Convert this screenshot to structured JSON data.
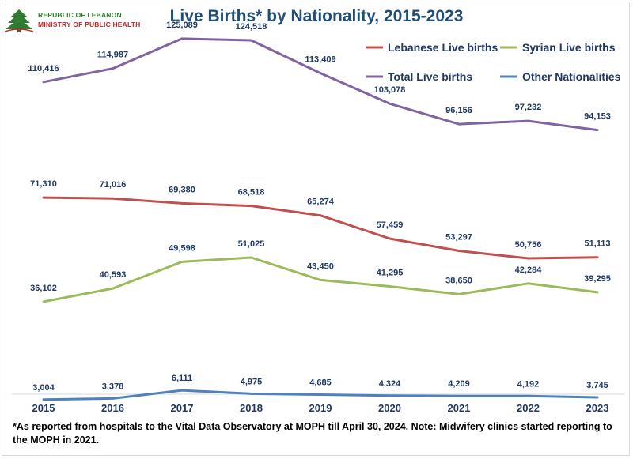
{
  "header": {
    "logo_line1": "REPUBLIC OF LEBANON",
    "logo_line2": "MINISTRY OF PUBLIC HEALTH"
  },
  "footnote": "*As reported from hospitals to the Vital Data Observatory at MOPH till April 30, 2024. Note: Midwifery clinics started reporting to the MOPH in 2021.",
  "colors": {
    "title": "#1f4e79",
    "labels": "#1f3864",
    "lebanese": "#c0504d",
    "syrian": "#9bbb59",
    "total": "#8064a2",
    "other": "#4f81bd"
  },
  "chart_data": {
    "type": "line",
    "title": "Live Births* by Nationality, 2015-2023",
    "x": [
      "2015",
      "2016",
      "2017",
      "2018",
      "2019",
      "2020",
      "2021",
      "2022",
      "2023"
    ],
    "ylim": [
      0,
      132000
    ],
    "grid": false,
    "legend_position": "top-right",
    "series": [
      {
        "key": "lebanese",
        "name": "Lebanese Live births",
        "color": "#c0504d",
        "values": [
          71310,
          71016,
          69380,
          68518,
          65274,
          57459,
          53297,
          50756,
          51113
        ],
        "labels": [
          "71,310",
          "71,016",
          "69,380",
          "68,518",
          "65,274",
          "57,459",
          "53,297",
          "50,756",
          "51,113"
        ]
      },
      {
        "key": "syrian",
        "name": "Syrian Live births",
        "color": "#9bbb59",
        "values": [
          36102,
          40593,
          49598,
          51025,
          43450,
          41295,
          38650,
          42284,
          39295
        ],
        "labels": [
          "36,102",
          "40,593",
          "49,598",
          "51,025",
          "43,450",
          "41,295",
          "38,650",
          "42,284",
          "39,295"
        ]
      },
      {
        "key": "total",
        "name": "Total Live births",
        "color": "#8064a2",
        "values": [
          110416,
          114987,
          125089,
          124518,
          113409,
          103078,
          96156,
          97232,
          94153
        ],
        "labels": [
          "110,416",
          "114,987",
          "125,089",
          "124,518",
          "113,409",
          "103,078",
          "96,156",
          "97,232",
          "94,153"
        ]
      },
      {
        "key": "other",
        "name": "Other Nationalities",
        "color": "#4f81bd",
        "values": [
          3004,
          3378,
          6111,
          4975,
          4685,
          4324,
          4209,
          4192,
          3745
        ],
        "labels": [
          "3,004",
          "3,378",
          "6,111",
          "4,975",
          "4,685",
          "4,324",
          "4,209",
          "4,192",
          "3,745"
        ]
      }
    ]
  }
}
